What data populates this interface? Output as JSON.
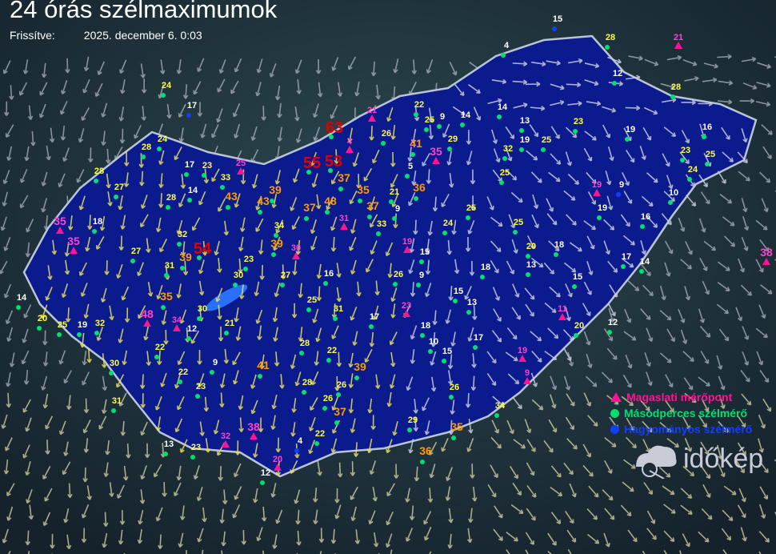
{
  "header": {
    "title": "24 órás szélmaximumok",
    "updated_label": "Frissítve:",
    "updated_value": "2025. december 6. 0:03"
  },
  "legend": [
    {
      "label": "Magaslati mérőpont",
      "marker": "triangle",
      "color": "#ff1493"
    },
    {
      "label": "Másodperces szélmérő",
      "marker": "dot",
      "color": "#00e070"
    },
    {
      "label": "Hagyományos szélmérő",
      "marker": "dot",
      "color": "#1040ff"
    }
  ],
  "logo": {
    "text": "időkép",
    "icon": "cloud-sun-icon"
  },
  "colors": {
    "low": "#ffffff",
    "mid": "#ffff40",
    "high": "#ff9900",
    "extreme": "#e00000",
    "summit": "#ff44cc",
    "country": "#0a1680"
  },
  "stations": [
    {
      "v": 15,
      "t": "classic"
    },
    {
      "v": 28,
      "t": "dot"
    },
    {
      "v": 21,
      "t": "summit"
    },
    {
      "v": 4,
      "t": "dot"
    },
    {
      "v": 12,
      "t": "dot"
    },
    {
      "v": 28,
      "t": "dot"
    },
    {
      "v": 24,
      "t": "dot"
    },
    {
      "v": 17,
      "t": "classic"
    },
    {
      "v": 21,
      "t": "summit"
    },
    {
      "v": 22,
      "t": "dot"
    },
    {
      "v": 9,
      "t": "dot"
    },
    {
      "v": 25,
      "t": "dot"
    },
    {
      "v": 14,
      "t": "dot"
    },
    {
      "v": 14,
      "t": "dot"
    },
    {
      "v": 13,
      "t": "dot"
    },
    {
      "v": 23,
      "t": "dot"
    },
    {
      "v": 19,
      "t": "dot"
    },
    {
      "v": 16,
      "t": "dot"
    },
    {
      "v": 63,
      "t": "dot"
    },
    {
      "v": 26,
      "t": "dot"
    },
    {
      "v": 41,
      "t": "dot"
    },
    {
      "v": 35,
      "t": "summit"
    },
    {
      "v": 29,
      "t": "dot"
    },
    {
      "v": 32,
      "t": "dot"
    },
    {
      "v": 19,
      "t": "dot"
    },
    {
      "v": 25,
      "t": "dot"
    },
    {
      "v": 4,
      "t": "summit"
    },
    {
      "v": 28,
      "t": "dot"
    },
    {
      "v": 24,
      "t": "dot"
    },
    {
      "v": 23,
      "t": "dot"
    },
    {
      "v": 25,
      "t": "dot"
    },
    {
      "v": 24,
      "t": "dot"
    },
    {
      "v": 17,
      "t": "dot"
    },
    {
      "v": 23,
      "t": "dot"
    },
    {
      "v": 25,
      "t": "summit"
    },
    {
      "v": 55,
      "t": "dot"
    },
    {
      "v": 53,
      "t": "dot"
    },
    {
      "v": 5,
      "t": "dot"
    },
    {
      "v": 25,
      "t": "dot"
    },
    {
      "v": 28,
      "t": "dot"
    },
    {
      "v": 27,
      "t": "dot"
    },
    {
      "v": 14,
      "t": "dot"
    },
    {
      "v": 33,
      "t": "dot"
    },
    {
      "v": 43,
      "t": "dot"
    },
    {
      "v": 39,
      "t": "dot"
    },
    {
      "v": 43,
      "t": "dot"
    },
    {
      "v": 37,
      "t": "dot"
    },
    {
      "v": 35,
      "t": "dot"
    },
    {
      "v": 21,
      "t": "dot"
    },
    {
      "v": 36,
      "t": "dot"
    },
    {
      "v": 19,
      "t": "summit"
    },
    {
      "v": 9,
      "t": "classic"
    },
    {
      "v": 10,
      "t": "dot"
    },
    {
      "v": 28,
      "t": "dot"
    },
    {
      "v": 48,
      "t": "dot"
    },
    {
      "v": 37,
      "t": "dot"
    },
    {
      "v": 31,
      "t": "summit"
    },
    {
      "v": 37,
      "t": "dot"
    },
    {
      "v": 9,
      "t": "dot"
    },
    {
      "v": 25,
      "t": "dot"
    },
    {
      "v": 24,
      "t": "dot"
    },
    {
      "v": 25,
      "t": "dot"
    },
    {
      "v": 19,
      "t": "dot"
    },
    {
      "v": 16,
      "t": "dot"
    },
    {
      "v": 35,
      "t": "summit"
    },
    {
      "v": 18,
      "t": "dot"
    },
    {
      "v": 34,
      "t": "dot"
    },
    {
      "v": 33,
      "t": "dot"
    },
    {
      "v": 32,
      "t": "dot"
    },
    {
      "v": 35,
      "t": "summit"
    },
    {
      "v": 54,
      "t": "dot"
    },
    {
      "v": 39,
      "t": "dot"
    },
    {
      "v": 39,
      "t": "dot"
    },
    {
      "v": 30,
      "t": "summit"
    },
    {
      "v": 19,
      "t": "summit"
    },
    {
      "v": 15,
      "t": "dot"
    },
    {
      "v": 20,
      "t": "dot"
    },
    {
      "v": 18,
      "t": "dot"
    },
    {
      "v": 13,
      "t": "dot"
    },
    {
      "v": 18,
      "t": "dot"
    },
    {
      "v": 17,
      "t": "dot"
    },
    {
      "v": 14,
      "t": "dot"
    },
    {
      "v": 38,
      "t": "summit"
    },
    {
      "v": 27,
      "t": "dot"
    },
    {
      "v": 31,
      "t": "dot"
    },
    {
      "v": 23,
      "t": "dot"
    },
    {
      "v": 27,
      "t": "dot"
    },
    {
      "v": 16,
      "t": "dot"
    },
    {
      "v": 26,
      "t": "dot"
    },
    {
      "v": 9,
      "t": "dot"
    },
    {
      "v": 15,
      "t": "dot"
    },
    {
      "v": 30,
      "t": "dot"
    },
    {
      "v": 14,
      "t": "dot"
    },
    {
      "v": 35,
      "t": "dot"
    },
    {
      "v": 30,
      "t": "dot"
    },
    {
      "v": 25,
      "t": "dot"
    },
    {
      "v": 31,
      "t": "dot"
    },
    {
      "v": 23,
      "t": "summit"
    },
    {
      "v": 15,
      "t": "dot"
    },
    {
      "v": 13,
      "t": "dot"
    },
    {
      "v": 11,
      "t": "summit"
    },
    {
      "v": 48,
      "t": "summit"
    },
    {
      "v": 34,
      "t": "summit"
    },
    {
      "v": 12,
      "t": "dot"
    },
    {
      "v": 21,
      "t": "dot"
    },
    {
      "v": 17,
      "t": "dot"
    },
    {
      "v": 18,
      "t": "dot"
    },
    {
      "v": 20,
      "t": "dot"
    },
    {
      "v": 12,
      "t": "dot"
    },
    {
      "v": 20,
      "t": "dot"
    },
    {
      "v": 25,
      "t": "dot"
    },
    {
      "v": 19,
      "t": "dot"
    },
    {
      "v": 32,
      "t": "dot"
    },
    {
      "v": 22,
      "t": "dot"
    },
    {
      "v": 10,
      "t": "dot"
    },
    {
      "v": 15,
      "t": "dot"
    },
    {
      "v": 17,
      "t": "dot"
    },
    {
      "v": 28,
      "t": "dot"
    },
    {
      "v": 22,
      "t": "dot"
    },
    {
      "v": 19,
      "t": "summit"
    },
    {
      "v": 30,
      "t": "dot"
    },
    {
      "v": 22,
      "t": "dot"
    },
    {
      "v": 9,
      "t": "dot"
    },
    {
      "v": 41,
      "t": "dot"
    },
    {
      "v": 39,
      "t": "dot"
    },
    {
      "v": 9,
      "t": "summit"
    },
    {
      "v": 23,
      "t": "dot"
    },
    {
      "v": 28,
      "t": "dot"
    },
    {
      "v": 26,
      "t": "dot"
    },
    {
      "v": 26,
      "t": "dot"
    },
    {
      "v": 31,
      "t": "dot"
    },
    {
      "v": 26,
      "t": "dot"
    },
    {
      "v": 37,
      "t": "dot"
    },
    {
      "v": 34,
      "t": "dot"
    },
    {
      "v": 13,
      "t": "dot"
    },
    {
      "v": 23,
      "t": "dot"
    },
    {
      "v": 32,
      "t": "summit"
    },
    {
      "v": 38,
      "t": "summit"
    },
    {
      "v": 22,
      "t": "dot"
    },
    {
      "v": 4,
      "t": "classic"
    },
    {
      "v": 29,
      "t": "dot"
    },
    {
      "v": 35,
      "t": "dot"
    },
    {
      "v": 20,
      "t": "summit"
    },
    {
      "v": 36,
      "t": "dot"
    },
    {
      "v": 12,
      "t": "dot"
    }
  ]
}
